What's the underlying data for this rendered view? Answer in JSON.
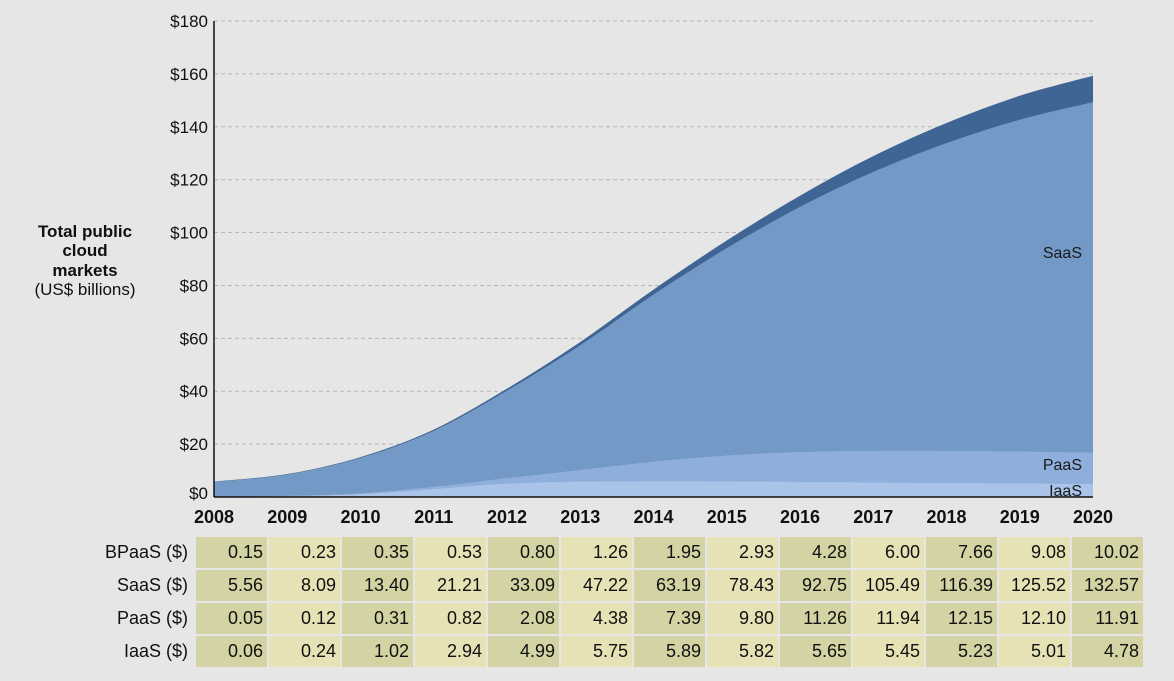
{
  "chart_data": {
    "type": "area",
    "stacked": true,
    "categories": [
      "2008",
      "2009",
      "2010",
      "2011",
      "2012",
      "2013",
      "2014",
      "2015",
      "2016",
      "2017",
      "2018",
      "2019",
      "2020"
    ],
    "ylabel": [
      "Total public",
      "cloud",
      "markets",
      "(US$ billions)"
    ],
    "ylim": [
      0,
      180
    ],
    "yticks": [
      {
        "value": 0,
        "label": "$0"
      },
      {
        "value": 20,
        "label": "$20"
      },
      {
        "value": 40,
        "label": "$40"
      },
      {
        "value": 60,
        "label": "$60"
      },
      {
        "value": 80,
        "label": "$80"
      },
      {
        "value": 100,
        "label": "$100"
      },
      {
        "value": 120,
        "label": "$120"
      },
      {
        "value": 140,
        "label": "$140"
      },
      {
        "value": 160,
        "label": "$160"
      },
      {
        "value": 180,
        "label": "$180"
      }
    ],
    "grid": true,
    "series": [
      {
        "key": "iaas",
        "name": "IaaS",
        "color": "#a9c4e8",
        "values": [
          0.06,
          0.24,
          1.02,
          2.94,
          4.99,
          5.75,
          5.89,
          5.82,
          5.65,
          5.45,
          5.23,
          5.01,
          4.78
        ]
      },
      {
        "key": "paas",
        "name": "PaaS",
        "color": "#8eaedc",
        "values": [
          0.05,
          0.12,
          0.31,
          0.82,
          2.08,
          4.38,
          7.39,
          9.8,
          11.26,
          11.94,
          12.15,
          12.1,
          11.91
        ]
      },
      {
        "key": "saas",
        "name": "SaaS",
        "color": "#7399c6",
        "values": [
          5.56,
          8.09,
          13.4,
          21.21,
          33.09,
          47.22,
          63.19,
          78.43,
          92.75,
          105.49,
          116.39,
          125.52,
          132.57
        ]
      },
      {
        "key": "bpaas",
        "name": "",
        "color": "#3e6593",
        "values": [
          0.15,
          0.23,
          0.35,
          0.53,
          0.8,
          1.26,
          1.95,
          2.93,
          4.28,
          6.0,
          7.66,
          9.08,
          10.02
        ]
      }
    ],
    "area_labels": {
      "saas": "SaaS",
      "paas": "PaaS",
      "iaas": "IaaS"
    }
  },
  "table": {
    "rows": [
      {
        "label": "BPaaS ($)",
        "values": [
          "0.15",
          "0.23",
          "0.35",
          "0.53",
          "0.80",
          "1.26",
          "1.95",
          "2.93",
          "4.28",
          "6.00",
          "7.66",
          "9.08",
          "10.02"
        ]
      },
      {
        "label": "SaaS ($)",
        "values": [
          "5.56",
          "8.09",
          "13.40",
          "21.21",
          "33.09",
          "47.22",
          "63.19",
          "78.43",
          "92.75",
          "105.49",
          "116.39",
          "125.52",
          "132.57"
        ]
      },
      {
        "label": "PaaS ($)",
        "values": [
          "0.05",
          "0.12",
          "0.31",
          "0.82",
          "2.08",
          "4.38",
          "7.39",
          "9.80",
          "11.26",
          "11.94",
          "12.15",
          "12.10",
          "11.91"
        ]
      },
      {
        "label": "IaaS ($)",
        "values": [
          "0.06",
          "0.24",
          "1.02",
          "2.94",
          "4.99",
          "5.75",
          "5.89",
          "5.82",
          "5.65",
          "5.45",
          "5.23",
          "5.01",
          "4.78"
        ]
      }
    ]
  }
}
